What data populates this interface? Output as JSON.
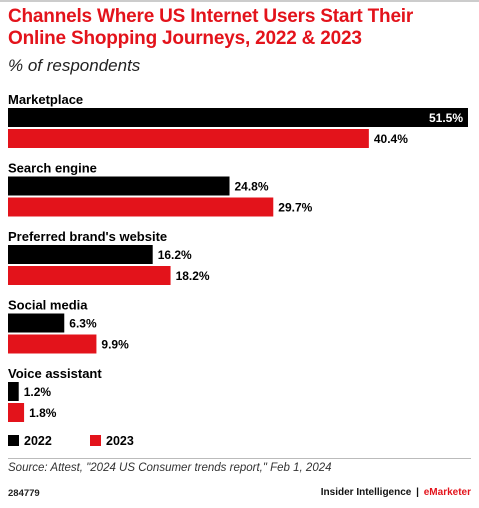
{
  "title": "Channels Where US Internet Users Start Their Online Shopping Journeys, 2022 & 2023",
  "subtitle": "% of respondents",
  "source": "Source: Attest, \"2024 US Consumer trends report,\" Feb 1, 2024",
  "footer": {
    "id": "284779",
    "brand_left": "Insider Intelligence",
    "separator": "|",
    "brand_right": "eMarketer"
  },
  "colors": {
    "series_2022": "#000000",
    "series_2023": "#e3131b",
    "title": "#e3131b"
  },
  "chart_data": {
    "type": "bar",
    "orientation": "horizontal",
    "categories": [
      "Marketplace",
      "Search engine",
      "Preferred brand's website",
      "Social media",
      "Voice assistant"
    ],
    "series": [
      {
        "name": "2022",
        "values": [
          51.5,
          24.8,
          16.2,
          6.3,
          1.2
        ],
        "labels": [
          "51.5%",
          "24.8%",
          "16.2%",
          "6.3%",
          "1.2%"
        ]
      },
      {
        "name": "2023",
        "values": [
          40.4,
          29.7,
          18.2,
          9.9,
          1.8
        ],
        "labels": [
          "40.4%",
          "29.7%",
          "18.2%",
          "9.9%",
          "1.8%"
        ]
      }
    ],
    "xlim": [
      0,
      51.5
    ],
    "grid": false,
    "legend": "bottom-left",
    "unit": "%"
  }
}
